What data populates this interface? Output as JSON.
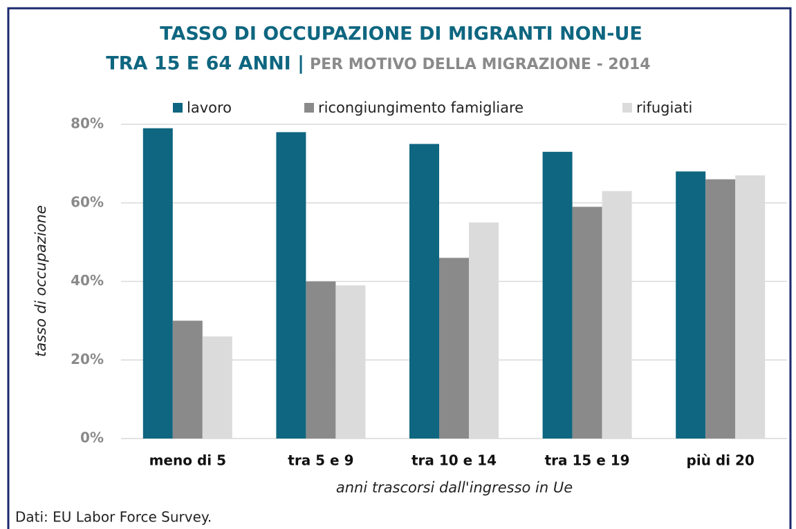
{
  "chart_data": {
    "type": "bar",
    "title": [
      "TASSO DI OCCUPAZIONE DI MIGRANTI NON-UE",
      "TRA 15 E 64 ANNI |"
    ],
    "subtitle": "PER MOTIVO DELLA MIGRAZIONE - 2014",
    "y_label": "tasso di occupazione",
    "x_label": "anni trascorsi dall'ingresso in Ue",
    "source": "Dati: EU Labor Force Survey.",
    "categories": [
      "meno di 5",
      "tra 5 e 9",
      "tra 10 e 14",
      "tra 15 e 19",
      "più di 20"
    ],
    "series": [
      {
        "name": "lavoro",
        "color": "#0e6680",
        "values": [
          79,
          78,
          75,
          73,
          68
        ]
      },
      {
        "name": "ricongiungimento famigliare",
        "color": "#8a8a8a",
        "values": [
          30,
          40,
          46,
          59,
          66
        ]
      },
      {
        "name": "rifugiati",
        "color": "#dcdbdb",
        "values": [
          26,
          39,
          55,
          63,
          67
        ]
      }
    ],
    "ylim": [
      0,
      80
    ],
    "yticks": [
      {
        "value": 0,
        "label": "0%"
      },
      {
        "value": 20,
        "label": "20%"
      },
      {
        "value": 40,
        "label": "40%"
      },
      {
        "value": 60,
        "label": "60%"
      },
      {
        "value": 80,
        "label": "80%"
      }
    ],
    "grid": true
  }
}
